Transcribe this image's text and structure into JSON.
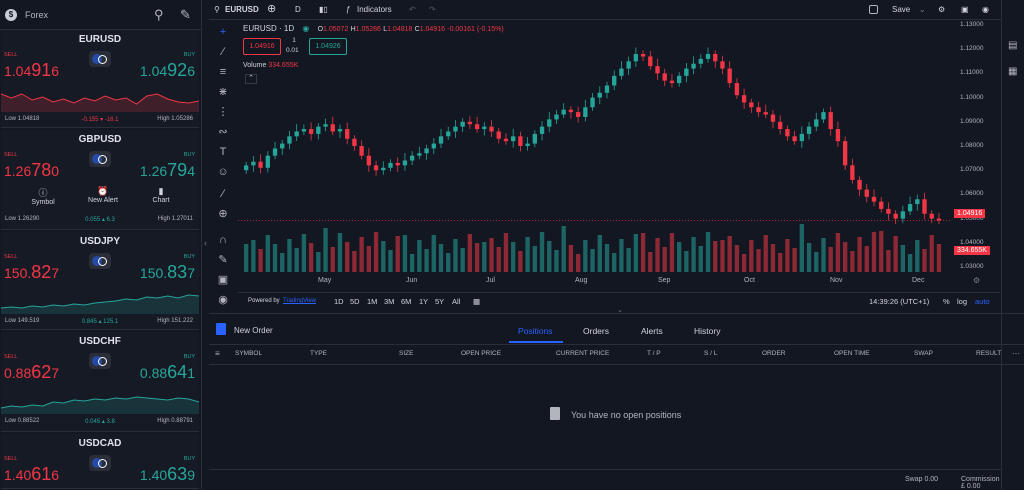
{
  "sidebar": {
    "title": "Forex"
  },
  "cards": [
    {
      "pair": "EURUSD",
      "sell_label": "SELL",
      "buy_label": "BUY",
      "sell_a": "1.04",
      "sell_b": "91",
      "sell_c": "6",
      "buy_a": "1.04",
      "buy_b": "92",
      "buy_c": "6",
      "low": "Low 1.04818",
      "change": "-0.155  ▾ -16.1",
      "high": "High 1.05286"
    },
    {
      "pair": "GBPUSD",
      "sell_label": "SELL",
      "buy_label": "BUY",
      "sell_a": "1.26",
      "sell_b": "78",
      "sell_c": "0",
      "buy_a": "1.26",
      "buy_b": "79",
      "buy_c": "4",
      "low": "Low 1.26290",
      "change": "0.055  ▴ 6.3",
      "high": "High 1.27011",
      "actions": [
        "Symbol",
        "New Alert",
        "Chart"
      ]
    },
    {
      "pair": "USDJPY",
      "sell_label": "SELL",
      "buy_label": "BUY",
      "sell_a": "150.",
      "sell_b": "82",
      "sell_c": "7",
      "buy_a": "150.",
      "buy_b": "83",
      "buy_c": "7",
      "low": "Low 149.519",
      "change": "0.845  ▴ 125.1",
      "high": "High 151.222"
    },
    {
      "pair": "USDCHF",
      "sell_label": "SELL",
      "buy_label": "BUY",
      "sell_a": "0.88",
      "sell_b": "62",
      "sell_c": "7",
      "buy_a": "0.88",
      "buy_b": "64",
      "buy_c": "1",
      "low": "Low 0.88522",
      "change": "0.045  ▴ 3.8",
      "high": "High 0.88791"
    },
    {
      "pair": "USDCAD",
      "sell_label": "SELL",
      "buy_label": "BUY",
      "sell_a": "1.40",
      "sell_b": "61",
      "sell_c": "6",
      "buy_a": "1.40",
      "buy_b": "63",
      "buy_c": "9"
    }
  ],
  "topbar": {
    "symbol": "EURUSD",
    "interval": "D",
    "indicators": "Indicators",
    "save": "Save"
  },
  "legend": {
    "title": "EURUSD · 1D",
    "o_label": "O",
    "o": "1.05072",
    "h_label": "H",
    "h": "1.05286",
    "l_label": "L",
    "l": "1.04818",
    "c_label": "C",
    "c": "1.04916",
    "chg": "-0.00161 (-0.15%)",
    "sell_box": "1.04916",
    "spread_top": "1",
    "spread": "0.01",
    "buy_box": "1.04926",
    "volume_label": "Volume",
    "volume": "334.655K"
  },
  "price_axis": [
    "1.13000",
    "1.12000",
    "1.11000",
    "1.10000",
    "1.09000",
    "1.08000",
    "1.07000",
    "1.06000",
    "1.05000",
    "1.04000",
    "1.03000"
  ],
  "price_tag": "1.04916",
  "vol_tag": "334.655K",
  "months": [
    "May",
    "Jun",
    "Jul",
    "Aug",
    "Sep",
    "Oct",
    "Nov",
    "Dec"
  ],
  "colors": {
    "up": "#26a69a",
    "down": "#f23645",
    "bg": "#131722"
  },
  "range": {
    "powered": "Powered by",
    "tv": "TradingView",
    "buttons": [
      "1D",
      "5D",
      "1M",
      "3M",
      "6M",
      "1Y",
      "5Y",
      "All"
    ],
    "time": "14:39:26 (UTC+1)",
    "pct": "%",
    "log": "log",
    "auto": "auto"
  },
  "panel": {
    "new_order": "New Order",
    "tabs": [
      "Positions",
      "Orders",
      "Alerts",
      "History"
    ],
    "columns": [
      "SYMBOL",
      "TYPE",
      "SIZE",
      "OPEN PRICE",
      "CURRENT PRICE",
      "T / P",
      "S / L",
      "ORDER",
      "OPEN TIME",
      "SWAP",
      "RESULT"
    ],
    "empty": "You have no open positions",
    "more": "···"
  },
  "footer": {
    "swap": "Swap 0.00",
    "commission": "Commission £ 0.00"
  },
  "chart_data": {
    "type": "candlestick",
    "x_labels": [
      "May",
      "Jun",
      "Jul",
      "Aug",
      "Sep",
      "Oct",
      "Nov",
      "Dec"
    ],
    "ylim": [
      1.03,
      1.13
    ],
    "close": [
      1.072,
      1.0735,
      1.071,
      1.076,
      1.079,
      1.081,
      1.084,
      1.086,
      1.087,
      1.085,
      1.088,
      1.089,
      1.086,
      1.087,
      1.083,
      1.08,
      1.076,
      1.072,
      1.07,
      1.071,
      1.073,
      1.072,
      1.074,
      1.076,
      1.077,
      1.079,
      1.081,
      1.084,
      1.086,
      1.088,
      1.09,
      1.089,
      1.087,
      1.088,
      1.086,
      1.083,
      1.082,
      1.084,
      1.08,
      1.081,
      1.085,
      1.088,
      1.091,
      1.093,
      1.095,
      1.094,
      1.092,
      1.096,
      1.1,
      1.102,
      1.105,
      1.109,
      1.112,
      1.115,
      1.118,
      1.117,
      1.113,
      1.11,
      1.107,
      1.106,
      1.109,
      1.112,
      1.114,
      1.116,
      1.118,
      1.115,
      1.112,
      1.106,
      1.101,
      1.098,
      1.096,
      1.094,
      1.093,
      1.09,
      1.087,
      1.084,
      1.082,
      1.085,
      1.088,
      1.091,
      1.094,
      1.087,
      1.082,
      1.072,
      1.066,
      1.062,
      1.059,
      1.057,
      1.054,
      1.052,
      1.05,
      1.053,
      1.056,
      1.058,
      1.052,
      1.05,
      1.0492
    ],
    "volume_label": "Volume"
  }
}
